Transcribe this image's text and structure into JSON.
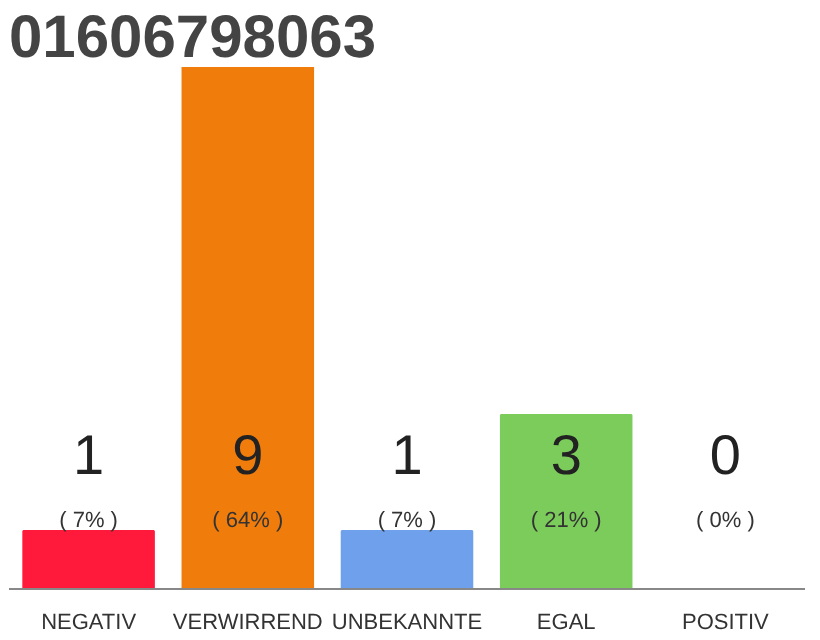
{
  "chart_data": {
    "type": "bar",
    "title": "01606798063",
    "categories": [
      "NEGATIV",
      "VERWIRREND",
      "UNBEKANNTE",
      "EGAL",
      "POSITIV"
    ],
    "values": [
      1,
      9,
      1,
      3,
      0
    ],
    "colors": [
      "#ff1a3c",
      "#f07c0c",
      "#6ea0ec",
      "#7ccc5c",
      "#d0d0d0"
    ],
    "tick_labels": "x",
    "grid": false,
    "data_labels": true,
    "annotations": [
      "( 7% )",
      "( 64% )",
      "( 7% )",
      "( 21% )",
      "( 0% )"
    ]
  }
}
